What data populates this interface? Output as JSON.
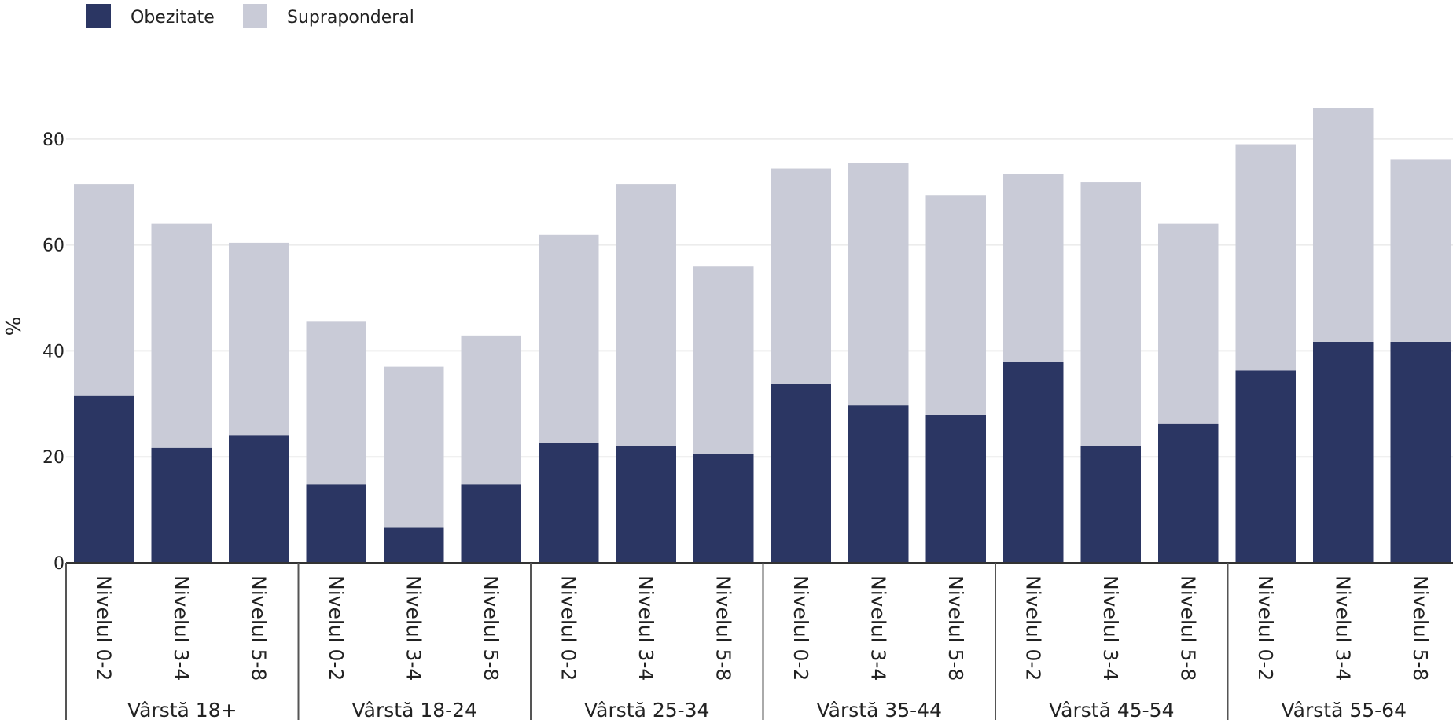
{
  "chart_data": {
    "type": "bar",
    "stacked": true,
    "ylabel": "%",
    "ylim": [
      0,
      90
    ],
    "yticks": [
      0,
      20,
      40,
      60,
      80
    ],
    "grid": true,
    "legend_position": "top-left",
    "colors": {
      "Obezitate": "#2b3663",
      "Supraponderal": "#c9cbd7"
    },
    "groups": [
      {
        "label": "Vârstă 18+",
        "categories": [
          "Nivelul 0-2",
          "Nivelul 3-4",
          "Nivelul 5-8"
        ]
      },
      {
        "label": "Vârstă 18-24",
        "categories": [
          "Nivelul 0-2",
          "Nivelul 3-4",
          "Nivelul 5-8"
        ]
      },
      {
        "label": "Vârstă 25-34",
        "categories": [
          "Nivelul 0-2",
          "Nivelul 3-4",
          "Nivelul 5-8"
        ]
      },
      {
        "label": "Vârstă 35-44",
        "categories": [
          "Nivelul 0-2",
          "Nivelul 3-4",
          "Nivelul 5-8"
        ]
      },
      {
        "label": "Vârstă 45-54",
        "categories": [
          "Nivelul 0-2",
          "Nivelul 3-4",
          "Nivelul 5-8"
        ]
      },
      {
        "label": "Vârstă 55-64",
        "categories": [
          "Nivelul 0-2",
          "Nivelul 3-4",
          "Nivelul 5-8"
        ]
      }
    ],
    "series": [
      {
        "name": "Obezitate",
        "values": [
          31.5,
          21.7,
          24.0,
          14.8,
          6.6,
          14.8,
          22.6,
          22.1,
          20.6,
          33.8,
          29.8,
          27.9,
          37.9,
          22.0,
          26.3,
          36.3,
          41.7,
          41.7
        ]
      },
      {
        "name": "Supraponderal",
        "values": [
          40.0,
          42.3,
          36.4,
          30.7,
          30.4,
          28.1,
          39.3,
          49.4,
          35.3,
          40.6,
          45.6,
          41.5,
          35.5,
          49.8,
          37.7,
          42.7,
          44.1,
          34.5
        ]
      }
    ]
  }
}
